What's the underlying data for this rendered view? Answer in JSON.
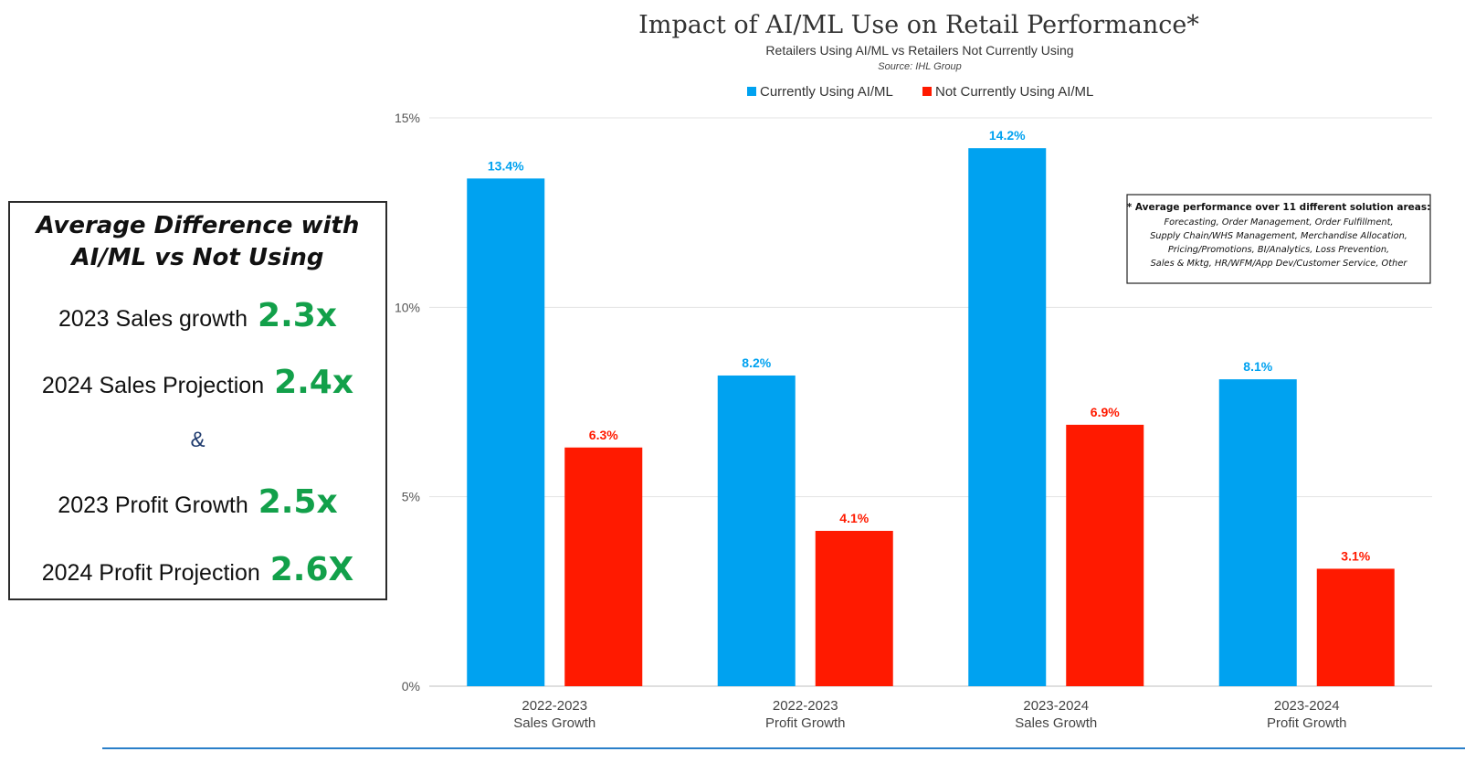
{
  "summary": {
    "heading_line1": "Average Difference with",
    "heading_line2": "AI/ML vs Not Using",
    "items": [
      {
        "label": "2023 Sales growth",
        "multiplier": "2.3x"
      },
      {
        "label": "2024 Sales Projection",
        "multiplier": "2.4x"
      },
      {
        "label": "2023 Profit Growth",
        "multiplier": "2.5x"
      },
      {
        "label": "2024 Profit Projection",
        "multiplier": "2.6X"
      }
    ],
    "ampersand": "&"
  },
  "footnote": {
    "heading": "* Average performance over 11 different solution areas:",
    "lines": [
      "Forecasting, Order Management, Order Fulfillment,",
      "Supply Chain/WHS Management, Merchandise Allocation,",
      "Pricing/Promotions, BI/Analytics, Loss Prevention,",
      "Sales & Mktg, HR/WFM/App Dev/Customer Service, Other"
    ]
  },
  "chart_data": {
    "type": "bar",
    "title": "Impact of AI/ML Use on Retail Performance*",
    "subtitle": "Retailers Using AI/ML vs Retailers Not Currently Using",
    "source": "Source: IHL Group",
    "categories": [
      [
        "2022-2023",
        "Sales Growth"
      ],
      [
        "2022-2023",
        "Profit Growth"
      ],
      [
        "2023-2024",
        "Sales Growth"
      ],
      [
        "2023-2024",
        "Profit Growth"
      ]
    ],
    "series": [
      {
        "name": "Currently Using AI/ML",
        "color": "#00a2f0",
        "values": [
          13.4,
          8.2,
          14.2,
          8.1
        ],
        "labels": [
          "13.4%",
          "8.2%",
          "14.2%",
          "8.1%"
        ]
      },
      {
        "name": "Not Currently Using AI/ML",
        "color": "#ff1a00",
        "values": [
          6.3,
          4.1,
          6.9,
          3.1
        ],
        "labels": [
          "6.3%",
          "4.1%",
          "6.9%",
          "3.1%"
        ]
      }
    ],
    "ylim": [
      0,
      15
    ],
    "yticks": [
      0,
      5,
      10,
      15
    ],
    "ytick_labels": [
      "0%",
      "5%",
      "10%",
      "15%"
    ],
    "grid": true,
    "legend_position": "top"
  }
}
